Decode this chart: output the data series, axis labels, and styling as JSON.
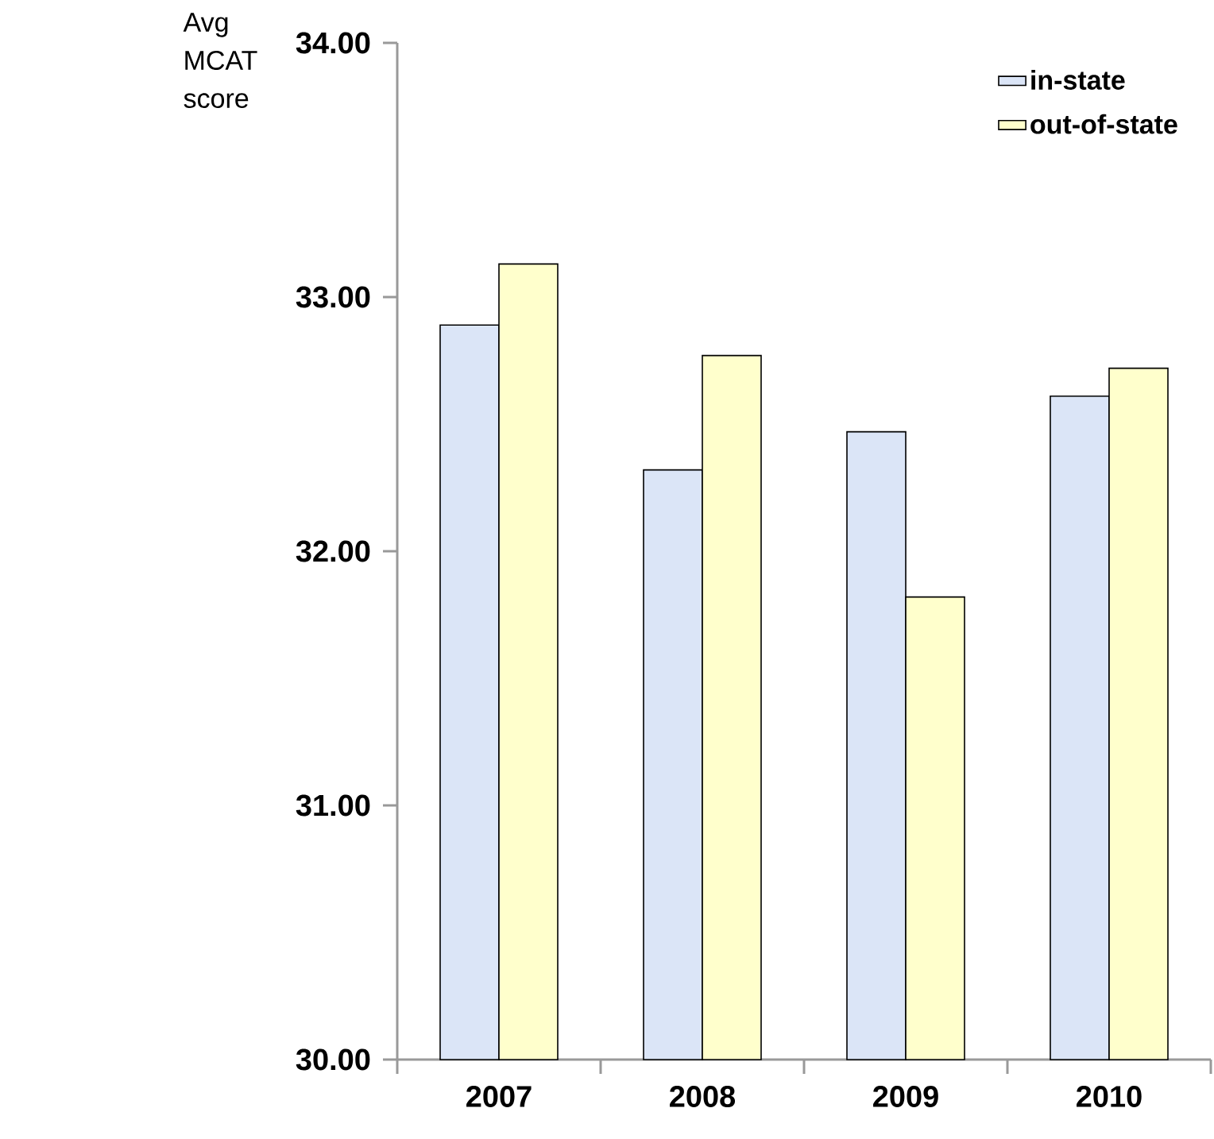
{
  "chart_data": {
    "type": "bar",
    "ylabel": "Avg MCAT score",
    "categories": [
      "2007",
      "2008",
      "2009",
      "2010"
    ],
    "series": [
      {
        "name": "in-state",
        "color": "#dbe5f7",
        "values": [
          32.89,
          32.32,
          32.47,
          32.61
        ]
      },
      {
        "name": "out-of-state",
        "color": "#ffffcc",
        "values": [
          33.13,
          32.77,
          31.82,
          32.72
        ]
      }
    ],
    "ylim": [
      30,
      34
    ],
    "yticks": [
      {
        "value": 30,
        "label": "30.00"
      },
      {
        "value": 31,
        "label": "31.00"
      },
      {
        "value": 32,
        "label": "32.00"
      },
      {
        "value": 33,
        "label": "33.00"
      },
      {
        "value": 34,
        "label": "34.00"
      }
    ],
    "legend": "top right",
    "grid": false
  }
}
